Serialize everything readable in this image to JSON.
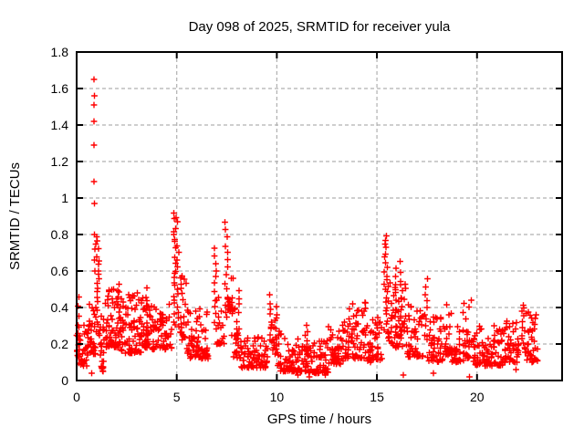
{
  "window": {
    "background": "#ffffff"
  },
  "chart_data": {
    "type": "scatter",
    "title": "Day 098 of 2025, SRMTID for receiver yula",
    "xlabel": "GPS time / hours",
    "ylabel": "SRMTID / TECUs",
    "xlim": [
      0,
      24.25
    ],
    "ylim": [
      0,
      1.8
    ],
    "xticks": [
      {
        "v": 0,
        "label": "0"
      },
      {
        "v": 5,
        "label": "5"
      },
      {
        "v": 10,
        "label": "10"
      },
      {
        "v": 15,
        "label": "15"
      },
      {
        "v": 20,
        "label": "20"
      }
    ],
    "yticks": [
      {
        "v": 0.0,
        "label": "0"
      },
      {
        "v": 0.2,
        "label": "0.2"
      },
      {
        "v": 0.4,
        "label": "0.4"
      },
      {
        "v": 0.6,
        "label": "0.6"
      },
      {
        "v": 0.8,
        "label": "0.8"
      },
      {
        "v": 1.0,
        "label": "1"
      },
      {
        "v": 1.2,
        "label": "1.2"
      },
      {
        "v": 1.4,
        "label": "1.4"
      },
      {
        "v": 1.6,
        "label": "1.6"
      },
      {
        "v": 1.8,
        "label": "1.8"
      }
    ],
    "grid": true,
    "legend": "none",
    "marker": "plus",
    "colors": {
      "marker": "#ff0000",
      "grid": "#b0b0b0",
      "frame": "#000000",
      "background": "#ffffff"
    },
    "seed": 1337,
    "points": [
      [
        0.87,
        1.65
      ],
      [
        0.88,
        1.56
      ],
      [
        0.86,
        1.51
      ],
      [
        0.87,
        1.42
      ],
      [
        0.87,
        1.29
      ],
      [
        0.86,
        1.09
      ],
      [
        0.88,
        0.97
      ],
      [
        0.9,
        0.8
      ],
      [
        0.92,
        0.72
      ],
      [
        0.89,
        0.66
      ],
      [
        0.91,
        0.6
      ],
      [
        0.75,
        0.04
      ],
      [
        1.32,
        0.05
      ],
      [
        11.05,
        0.03
      ],
      [
        11.62,
        0.02
      ],
      [
        12.42,
        0.03
      ],
      [
        16.32,
        0.03
      ],
      [
        17.82,
        0.04
      ],
      [
        19.62,
        0.02
      ],
      [
        21.95,
        0.06
      ]
    ],
    "bands": [
      [
        0.02,
        0.6,
        42,
        0.08,
        0.32
      ],
      [
        0.6,
        0.95,
        28,
        0.14,
        0.46
      ],
      [
        1.15,
        1.45,
        26,
        0.05,
        0.36
      ],
      [
        1.45,
        2.2,
        60,
        0.18,
        0.5
      ],
      [
        2.2,
        3.2,
        72,
        0.15,
        0.48
      ],
      [
        3.2,
        3.6,
        30,
        0.18,
        0.47
      ],
      [
        3.6,
        4.7,
        72,
        0.17,
        0.42
      ],
      [
        5.1,
        5.5,
        26,
        0.22,
        0.58
      ],
      [
        5.5,
        6.6,
        70,
        0.12,
        0.4
      ],
      [
        7.0,
        7.35,
        20,
        0.2,
        0.46
      ],
      [
        7.55,
        7.8,
        20,
        0.38,
        0.6
      ],
      [
        7.8,
        8.25,
        26,
        0.12,
        0.4
      ],
      [
        8.25,
        9.6,
        80,
        0.07,
        0.24
      ],
      [
        9.75,
        10.1,
        22,
        0.14,
        0.42
      ],
      [
        10.1,
        11.6,
        90,
        0.05,
        0.26
      ],
      [
        11.6,
        12.6,
        62,
        0.04,
        0.22
      ],
      [
        12.6,
        13.3,
        46,
        0.09,
        0.33
      ],
      [
        13.3,
        14.5,
        72,
        0.12,
        0.45
      ],
      [
        14.5,
        15.25,
        46,
        0.1,
        0.35
      ],
      [
        15.55,
        16.45,
        58,
        0.18,
        0.55
      ],
      [
        16.45,
        17.3,
        50,
        0.13,
        0.42
      ],
      [
        17.55,
        18.4,
        50,
        0.1,
        0.35
      ],
      [
        18.4,
        18.75,
        22,
        0.14,
        0.43
      ],
      [
        18.75,
        19.3,
        30,
        0.1,
        0.3
      ],
      [
        19.3,
        19.75,
        26,
        0.12,
        0.45
      ],
      [
        19.75,
        21.3,
        92,
        0.08,
        0.3
      ],
      [
        21.3,
        22.1,
        52,
        0.1,
        0.33
      ],
      [
        22.45,
        23.0,
        40,
        0.1,
        0.38
      ]
    ],
    "columns": [
      [
        0.05,
        0.12,
        6,
        0.2,
        0.46
      ],
      [
        0.95,
        1.12,
        22,
        0.25,
        0.79
      ],
      [
        2.05,
        2.15,
        8,
        0.28,
        0.52
      ],
      [
        3.45,
        3.55,
        8,
        0.25,
        0.5
      ],
      [
        4.85,
        5.1,
        32,
        0.3,
        0.92
      ],
      [
        6.86,
        6.98,
        12,
        0.28,
        0.73
      ],
      [
        7.4,
        7.55,
        14,
        0.34,
        0.86
      ],
      [
        8.0,
        8.12,
        8,
        0.2,
        0.5
      ],
      [
        9.64,
        9.74,
        8,
        0.22,
        0.46
      ],
      [
        11.45,
        11.55,
        6,
        0.1,
        0.3
      ],
      [
        15.35,
        15.55,
        22,
        0.28,
        0.8
      ],
      [
        15.9,
        16.0,
        8,
        0.3,
        0.62
      ],
      [
        16.15,
        16.28,
        8,
        0.3,
        0.65
      ],
      [
        17.38,
        17.52,
        10,
        0.22,
        0.55
      ],
      [
        22.2,
        22.42,
        12,
        0.15,
        0.42
      ]
    ]
  }
}
